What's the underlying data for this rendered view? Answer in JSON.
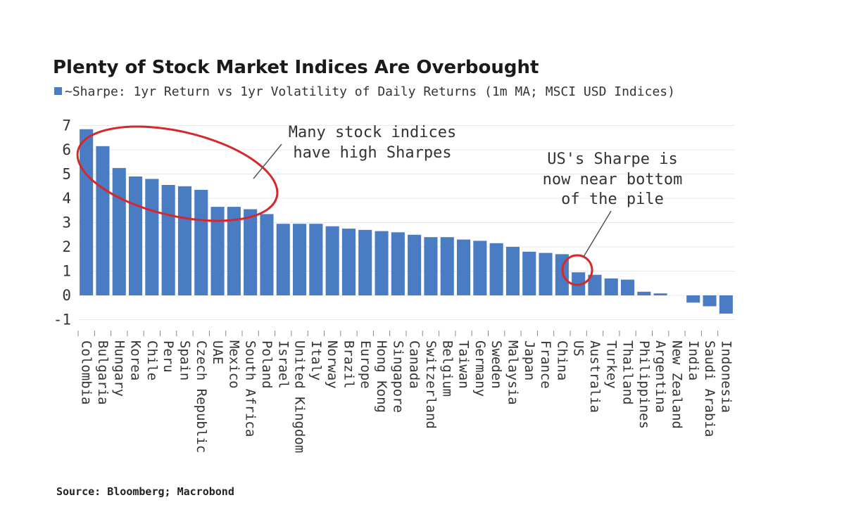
{
  "chart_data": {
    "type": "bar",
    "title": "Plenty of Stock Market Indices Are Overbought",
    "series": [
      {
        "name": "~Sharpe: 1yr Return vs 1yr Volatility of Daily Returns (1m MA; MSCI USD Indices)",
        "color": "#4a7cc4"
      }
    ],
    "categories": [
      "Colombia",
      "Bulgaria",
      "Hungary",
      "Korea",
      "Chile",
      "Peru",
      "Spain",
      "Czech Republic",
      "UAE",
      "Mexico",
      "South Africa",
      "Poland",
      "Israel",
      "United Kingdom",
      "Italy",
      "Norway",
      "Brazil",
      "Europe",
      "Hong Kong",
      "Singapore",
      "Canada",
      "Switzerland",
      "Belgium",
      "Taiwan",
      "Germany",
      "Sweden",
      "Malaysia",
      "Japan",
      "France",
      "China",
      "US",
      "Australia",
      "Turkey",
      "Thailand",
      "Philippines",
      "Argentina",
      "New Zealand",
      "India",
      "Saudi Arabia",
      "Indonesia"
    ],
    "values": [
      6.85,
      6.15,
      5.25,
      4.9,
      4.8,
      4.55,
      4.5,
      4.35,
      3.65,
      3.65,
      3.55,
      3.35,
      2.95,
      2.95,
      2.95,
      2.85,
      2.75,
      2.7,
      2.65,
      2.6,
      2.5,
      2.4,
      2.4,
      2.3,
      2.25,
      2.15,
      2.0,
      1.8,
      1.75,
      1.7,
      0.95,
      0.85,
      0.7,
      0.65,
      0.15,
      0.08,
      0.0,
      -0.3,
      -0.45,
      -0.75
    ],
    "yticks": [
      "7",
      "6",
      "5",
      "4",
      "3",
      "2",
      "1",
      "0",
      "-1"
    ],
    "ylim": [
      -1.3,
      7.3
    ],
    "grid": true,
    "legend": "top-left",
    "annotations": [
      {
        "lines": [
          "Many stock indices",
          "have high Sharpes"
        ],
        "target": "Colombia–Poland",
        "color": "#d6282b"
      },
      {
        "lines": [
          "US's Sharpe is",
          "now near bottom",
          "of the pile"
        ],
        "target": "US",
        "color": "#d6282b"
      }
    ],
    "source": "Source: Bloomberg; Macrobond"
  }
}
